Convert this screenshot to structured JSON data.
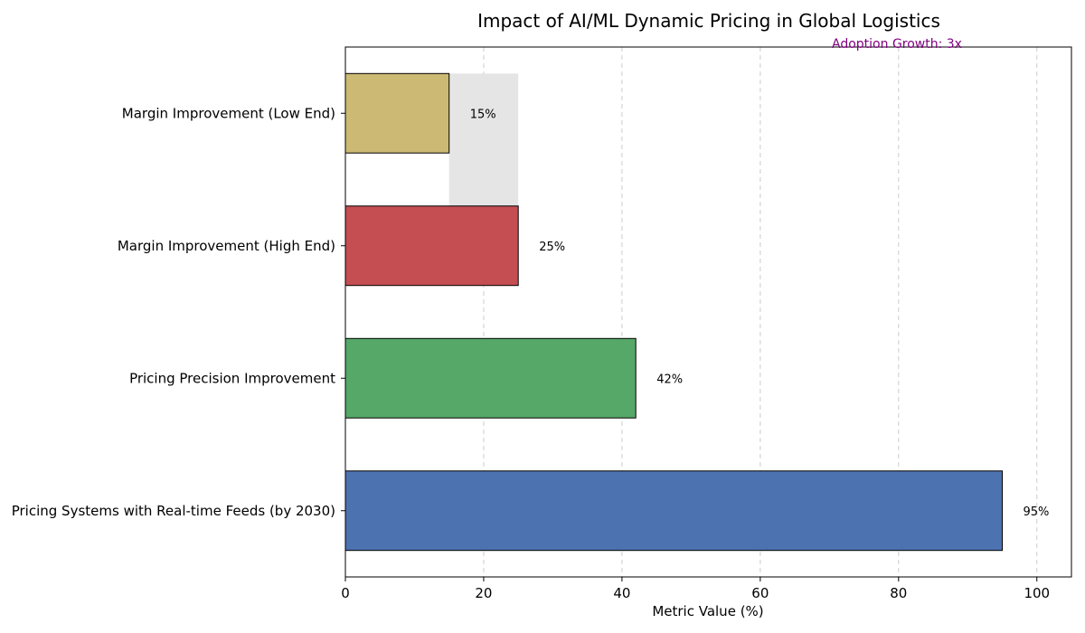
{
  "chart_data": {
    "type": "bar",
    "orientation": "horizontal",
    "title": "Impact of AI/ML Dynamic Pricing in Global Logistics",
    "annotation": "Adoption Growth: 3x",
    "xlabel": "Metric Value (%)",
    "ylabel": "",
    "xlim": [
      0,
      105
    ],
    "xticks": [
      0,
      20,
      40,
      60,
      80,
      100
    ],
    "grid": "x-dashed",
    "categories": [
      "Margin Improvement (Low End)",
      "Margin Improvement (High End)",
      "Pricing Precision Improvement",
      "Pricing Systems with Real-time Feeds (by 2030)"
    ],
    "values": [
      15,
      25,
      42,
      95
    ],
    "data_labels": [
      "15%",
      "25%",
      "42%",
      "95%"
    ],
    "colors": [
      "#ccb974",
      "#c44e52",
      "#55a868",
      "#4c72b0"
    ],
    "range_band": {
      "category": "Margin Improvement (Low End)",
      "from": 15,
      "to": 25,
      "color": "#e5e5e5"
    }
  }
}
